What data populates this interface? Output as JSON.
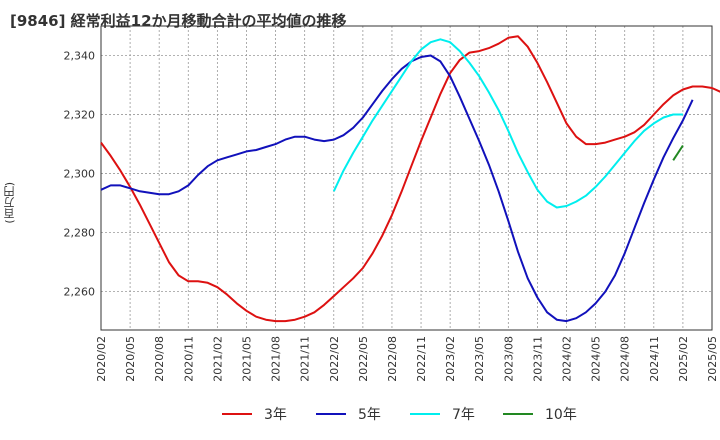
{
  "title": "[9846]  経常利益12か月移動合計の平均値の推移",
  "chart_data": {
    "type": "line",
    "ylabel": "(百万円)",
    "ylim": [
      2247,
      2350
    ],
    "y_ticks": [
      2260,
      2280,
      2300,
      2320,
      2340
    ],
    "y_tick_labels": [
      "2,260",
      "2,280",
      "2,300",
      "2,320",
      "2,340"
    ],
    "x_ticks": [
      "2020/02",
      "2020/05",
      "2020/08",
      "2020/11",
      "2021/02",
      "2021/05",
      "2021/08",
      "2021/11",
      "2022/02",
      "2022/05",
      "2022/08",
      "2022/11",
      "2023/02",
      "2023/05",
      "2023/08",
      "2023/11",
      "2024/02",
      "2024/05",
      "2024/08",
      "2024/11",
      "2025/02",
      "2025/05"
    ],
    "grid": true,
    "legend_position": "bottom",
    "series": [
      {
        "name": "3年",
        "color": "#dd1111",
        "points": [
          [
            "2020/02",
            2310.5
          ],
          [
            "2020/03",
            2306
          ],
          [
            "2020/04",
            2301
          ],
          [
            "2020/05",
            2295.5
          ],
          [
            "2020/06",
            2289.5
          ],
          [
            "2020/07",
            2283
          ],
          [
            "2020/08",
            2276.5
          ],
          [
            "2020/09",
            2270
          ],
          [
            "2020/10",
            2265.5
          ],
          [
            "2020/11",
            2263.5
          ],
          [
            "2020/12",
            2263.5
          ],
          [
            "2021/01",
            2263
          ],
          [
            "2021/02",
            2261.5
          ],
          [
            "2021/03",
            2259
          ],
          [
            "2021/04",
            2256
          ],
          [
            "2021/05",
            2253.5
          ],
          [
            "2021/06",
            2251.5
          ],
          [
            "2021/07",
            2250.5
          ],
          [
            "2021/08",
            2250
          ],
          [
            "2021/09",
            2250
          ],
          [
            "2021/10",
            2250.5
          ],
          [
            "2021/11",
            2251.5
          ],
          [
            "2021/12",
            2253
          ],
          [
            "2022/01",
            2255.5
          ],
          [
            "2022/02",
            2258.5
          ],
          [
            "2022/03",
            2261.5
          ],
          [
            "2022/04",
            2264.5
          ],
          [
            "2022/05",
            2268
          ],
          [
            "2022/06",
            2273
          ],
          [
            "2022/07",
            2279
          ],
          [
            "2022/08",
            2286
          ],
          [
            "2022/09",
            2294
          ],
          [
            "2022/10",
            2302.5
          ],
          [
            "2022/11",
            2311
          ],
          [
            "2022/12",
            2319
          ],
          [
            "2023/01",
            2327
          ],
          [
            "2023/02",
            2334
          ],
          [
            "2023/03",
            2338.5
          ],
          [
            "2023/04",
            2341
          ],
          [
            "2023/05",
            2341.5
          ],
          [
            "2023/06",
            2342.5
          ],
          [
            "2023/07",
            2344
          ],
          [
            "2023/08",
            2346
          ],
          [
            "2023/09",
            2346.5
          ],
          [
            "2023/10",
            2343
          ],
          [
            "2023/11",
            2337.5
          ],
          [
            "2023/12",
            2331
          ],
          [
            "2024/01",
            2324
          ],
          [
            "2024/02",
            2317
          ],
          [
            "2024/03",
            2312.5
          ],
          [
            "2024/04",
            2310
          ],
          [
            "2024/05",
            2310
          ],
          [
            "2024/06",
            2310.5
          ],
          [
            "2024/07",
            2311.5
          ],
          [
            "2024/08",
            2312.5
          ],
          [
            "2024/09",
            2314
          ],
          [
            "2024/10",
            2316.5
          ],
          [
            "2024/11",
            2320
          ],
          [
            "2024/12",
            2323.5
          ],
          [
            "2025/01",
            2326.5
          ],
          [
            "2025/02",
            2328.5
          ],
          [
            "2025/03",
            2329.5
          ],
          [
            "2025/04",
            2329.5
          ],
          [
            "2025/05",
            2329
          ],
          [
            "2025/06",
            2327.5
          ]
        ]
      },
      {
        "name": "5年",
        "color": "#1111bb",
        "points": [
          [
            "2020/02",
            2294.5
          ],
          [
            "2020/03",
            2296
          ],
          [
            "2020/04",
            2296
          ],
          [
            "2020/05",
            2295
          ],
          [
            "2020/06",
            2294
          ],
          [
            "2020/07",
            2293.5
          ],
          [
            "2020/08",
            2293
          ],
          [
            "2020/09",
            2293
          ],
          [
            "2020/10",
            2294
          ],
          [
            "2020/11",
            2296
          ],
          [
            "2020/12",
            2299.5
          ],
          [
            "2021/01",
            2302.5
          ],
          [
            "2021/02",
            2304.5
          ],
          [
            "2021/03",
            2305.5
          ],
          [
            "2021/04",
            2306.5
          ],
          [
            "2021/05",
            2307.5
          ],
          [
            "2021/06",
            2308
          ],
          [
            "2021/07",
            2309
          ],
          [
            "2021/08",
            2310
          ],
          [
            "2021/09",
            2311.5
          ],
          [
            "2021/10",
            2312.5
          ],
          [
            "2021/11",
            2312.5
          ],
          [
            "2021/12",
            2311.5
          ],
          [
            "2022/01",
            2311
          ],
          [
            "2022/02",
            2311.5
          ],
          [
            "2022/03",
            2313
          ],
          [
            "2022/04",
            2315.5
          ],
          [
            "2022/05",
            2319
          ],
          [
            "2022/06",
            2323.5
          ],
          [
            "2022/07",
            2328
          ],
          [
            "2022/08",
            2332
          ],
          [
            "2022/09",
            2335.5
          ],
          [
            "2022/10",
            2338
          ],
          [
            "2022/11",
            2339.5
          ],
          [
            "2022/12",
            2340
          ],
          [
            "2023/01",
            2338
          ],
          [
            "2023/02",
            2333
          ],
          [
            "2023/03",
            2326
          ],
          [
            "2023/04",
            2318.5
          ],
          [
            "2023/05",
            2311
          ],
          [
            "2023/06",
            2303
          ],
          [
            "2023/07",
            2294
          ],
          [
            "2023/08",
            2284
          ],
          [
            "2023/09",
            2273.5
          ],
          [
            "2023/10",
            2264.5
          ],
          [
            "2023/11",
            2258
          ],
          [
            "2023/12",
            2253
          ],
          [
            "2024/01",
            2250.5
          ],
          [
            "2024/02",
            2250
          ],
          [
            "2024/03",
            2251
          ],
          [
            "2024/04",
            2253
          ],
          [
            "2024/05",
            2256
          ],
          [
            "2024/06",
            2260
          ],
          [
            "2024/07",
            2265.5
          ],
          [
            "2024/08",
            2273
          ],
          [
            "2024/09",
            2281.5
          ],
          [
            "2024/10",
            2290
          ],
          [
            "2024/11",
            2298
          ],
          [
            "2024/12",
            2305.5
          ],
          [
            "2025/01",
            2312
          ],
          [
            "2025/02",
            2318
          ],
          [
            "2025/03",
            2325
          ]
        ]
      },
      {
        "name": "7年",
        "color": "#00eeee",
        "points": [
          [
            "2022/02",
            2294
          ],
          [
            "2022/03",
            2301
          ],
          [
            "2022/04",
            2307
          ],
          [
            "2022/05",
            2312.5
          ],
          [
            "2022/06",
            2318
          ],
          [
            "2022/07",
            2323
          ],
          [
            "2022/08",
            2328
          ],
          [
            "2022/09",
            2333
          ],
          [
            "2022/10",
            2338
          ],
          [
            "2022/11",
            2342
          ],
          [
            "2022/12",
            2344.5
          ],
          [
            "2023/01",
            2345.5
          ],
          [
            "2023/02",
            2344.5
          ],
          [
            "2023/03",
            2341.5
          ],
          [
            "2023/04",
            2337.5
          ],
          [
            "2023/05",
            2333
          ],
          [
            "2023/06",
            2327.5
          ],
          [
            "2023/07",
            2321.5
          ],
          [
            "2023/08",
            2314.5
          ],
          [
            "2023/09",
            2307
          ],
          [
            "2023/10",
            2300.5
          ],
          [
            "2023/11",
            2294.5
          ],
          [
            "2023/12",
            2290.5
          ],
          [
            "2024/01",
            2288.5
          ],
          [
            "2024/02",
            2289
          ],
          [
            "2024/03",
            2290.5
          ],
          [
            "2024/04",
            2292.5
          ],
          [
            "2024/05",
            2295.5
          ],
          [
            "2024/06",
            2299
          ],
          [
            "2024/07",
            2303
          ],
          [
            "2024/08",
            2307
          ],
          [
            "2024/09",
            2311
          ],
          [
            "2024/10",
            2314.5
          ],
          [
            "2024/11",
            2317
          ],
          [
            "2024/12",
            2319
          ],
          [
            "2025/01",
            2320
          ],
          [
            "2025/02",
            2320
          ]
        ]
      },
      {
        "name": "10年",
        "color": "#228822",
        "points": [
          [
            "2025/01",
            2304.5
          ],
          [
            "2025/02",
            2309.5
          ]
        ]
      }
    ]
  }
}
